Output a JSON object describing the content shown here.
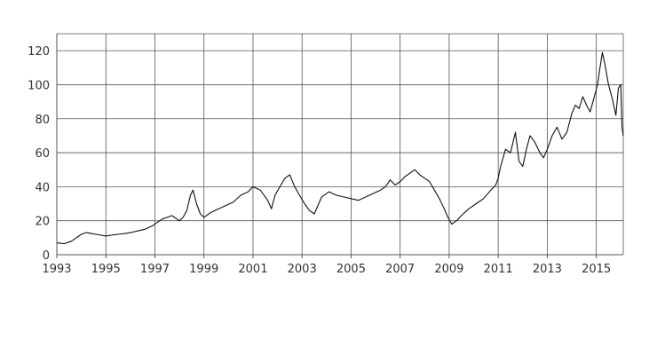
{
  "chart_data": {
    "type": "line",
    "title": "",
    "xlabel": "",
    "ylabel": "",
    "xlim": [
      1993,
      2016.1
    ],
    "ylim": [
      0,
      130
    ],
    "grid": true,
    "legend": "none",
    "xticks": [
      1993,
      1995,
      1997,
      1999,
      2001,
      2003,
      2005,
      2007,
      2009,
      2011,
      2013,
      2015
    ],
    "xtick_labels": [
      "1993",
      "1995",
      "1997",
      "1999",
      "2001",
      "2003",
      "2005",
      "2007",
      "2009",
      "2011",
      "2013",
      "2015"
    ],
    "yticks": [
      0,
      20,
      40,
      60,
      80,
      100,
      120
    ],
    "ytick_labels": [
      "0",
      "20",
      "40",
      "60",
      "80",
      "100",
      "120"
    ],
    "xgrid": [
      1993,
      1995,
      1997,
      1999,
      2001,
      2003,
      2005,
      2007,
      2009,
      2011,
      2013,
      2015,
      2016.1
    ],
    "ygrid": [
      0,
      20,
      40,
      60,
      80,
      100,
      120,
      130
    ],
    "line_color": "#111111",
    "grid_color": "#555555",
    "series": [
      {
        "x": [
          1993.0,
          1993.3,
          1993.6,
          1993.8,
          1994.0,
          1994.2,
          1994.4,
          1994.6,
          1994.8,
          1995.0,
          1995.2,
          1995.5,
          1995.8,
          1996.0,
          1996.3,
          1996.6,
          1996.9,
          1997.1,
          1997.3,
          1997.5,
          1997.7,
          1997.9,
          1998.0,
          1998.15,
          1998.3,
          1998.45,
          1998.55,
          1998.7,
          1998.85,
          1999.0,
          1999.3,
          1999.6,
          1999.9,
          2000.2,
          2000.5,
          2000.8,
          2001.0,
          2001.3,
          2001.6,
          2001.75,
          2001.9,
          2002.1,
          2002.3,
          2002.5,
          2002.7,
          2002.9,
          2003.1,
          2003.3,
          2003.5,
          2003.8,
          2004.1,
          2004.4,
          2004.7,
          2005.0,
          2005.3,
          2005.6,
          2005.9,
          2006.2,
          2006.4,
          2006.6,
          2006.8,
          2007.0,
          2007.2,
          2007.4,
          2007.6,
          2007.8,
          2008.0,
          2008.2,
          2008.4,
          2008.6,
          2008.8,
          2008.95,
          2009.1,
          2009.3,
          2009.5,
          2009.8,
          2010.1,
          2010.4,
          2010.7,
          2010.9,
          2011.0,
          2011.1,
          2011.3,
          2011.5,
          2011.7,
          2011.85,
          2012.0,
          2012.15,
          2012.3,
          2012.5,
          2012.7,
          2012.85,
          2013.0,
          2013.2,
          2013.4,
          2013.6,
          2013.8,
          2014.0,
          2014.15,
          2014.3,
          2014.45,
          2014.6,
          2014.75,
          2014.9,
          2015.05,
          2015.15,
          2015.25,
          2015.35,
          2015.5,
          2015.65,
          2015.8,
          2015.9,
          2016.0,
          2016.05,
          2016.1
        ],
        "y": [
          7,
          6.5,
          8,
          10,
          12,
          13,
          12.5,
          12,
          11.5,
          11,
          11.5,
          12,
          12.5,
          13,
          14,
          15,
          17,
          19,
          21,
          22,
          23,
          21,
          20,
          22,
          26,
          35,
          38,
          30,
          24,
          22,
          25,
          27,
          29,
          31,
          35,
          37,
          40,
          38,
          32,
          27,
          35,
          40,
          45,
          47,
          40,
          35,
          30,
          26,
          24,
          34,
          37,
          35,
          34,
          33,
          32,
          34,
          36,
          38,
          40,
          44,
          41,
          43,
          46,
          48,
          50,
          47,
          45,
          43,
          38,
          33,
          27,
          22,
          18,
          20,
          23,
          27,
          30,
          33,
          38,
          41,
          45,
          52,
          62,
          60,
          72,
          55,
          52,
          62,
          70,
          66,
          60,
          57,
          62,
          70,
          75,
          68,
          72,
          83,
          88,
          86,
          93,
          88,
          84,
          92,
          100,
          110,
          119,
          112,
          100,
          92,
          82,
          98,
          100,
          75,
          70
        ]
      }
    ]
  }
}
